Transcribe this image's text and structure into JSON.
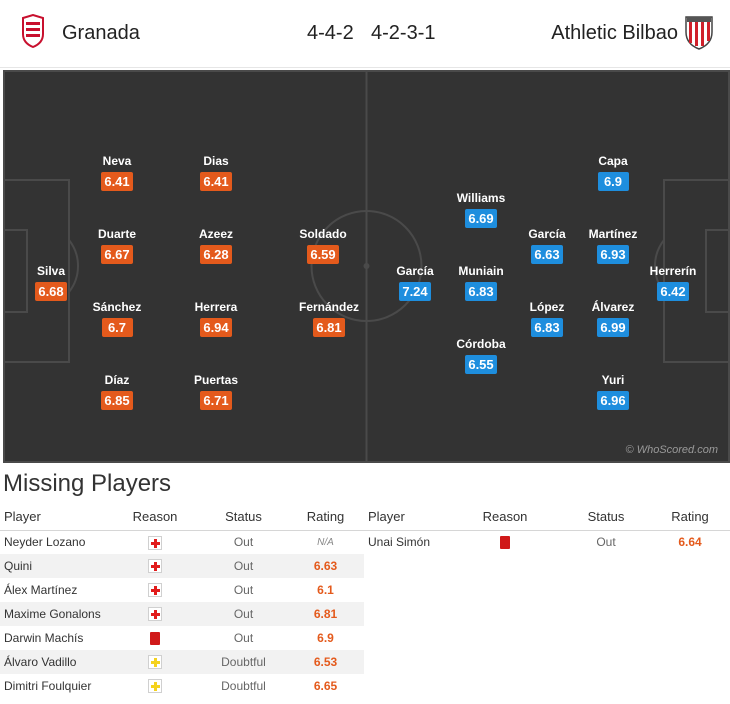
{
  "header": {
    "home_team": "Granada",
    "away_team": "Athletic Bilbao",
    "home_formation": "4-4-2",
    "away_formation": "4-2-3-1"
  },
  "pitch": {
    "watermark": "© WhoScored.com",
    "home_players": [
      {
        "name": "Silva",
        "rating": "6.68"
      },
      {
        "name": "Neva",
        "rating": "6.41"
      },
      {
        "name": "Duarte",
        "rating": "6.67"
      },
      {
        "name": "Sánchez",
        "rating": "6.7"
      },
      {
        "name": "Díaz",
        "rating": "6.85"
      },
      {
        "name": "Dias",
        "rating": "6.41"
      },
      {
        "name": "Azeez",
        "rating": "6.28"
      },
      {
        "name": "Herrera",
        "rating": "6.94"
      },
      {
        "name": "Puertas",
        "rating": "6.71"
      },
      {
        "name": "Soldado",
        "rating": "6.59"
      },
      {
        "name": "Fernández",
        "rating": "6.81"
      }
    ],
    "away_players": [
      {
        "name": "García",
        "rating": "7.24"
      },
      {
        "name": "Williams",
        "rating": "6.69"
      },
      {
        "name": "Muniain",
        "rating": "6.83"
      },
      {
        "name": "Córdoba",
        "rating": "6.55"
      },
      {
        "name": "García",
        "rating": "6.63"
      },
      {
        "name": "López",
        "rating": "6.83"
      },
      {
        "name": "Capa",
        "rating": "6.9"
      },
      {
        "name": "Martínez",
        "rating": "6.93"
      },
      {
        "name": "Álvarez",
        "rating": "6.99"
      },
      {
        "name": "Yuri",
        "rating": "6.96"
      },
      {
        "name": "Herrerín",
        "rating": "6.42"
      }
    ]
  },
  "missing": {
    "title": "Missing Players",
    "columns": {
      "player": "Player",
      "reason": "Reason",
      "status": "Status",
      "rating": "Rating"
    },
    "home": [
      {
        "player": "Neyder Lozano",
        "reason": "injury-icon",
        "status": "Out",
        "rating": "N/A"
      },
      {
        "player": "Quini",
        "reason": "injury-icon",
        "status": "Out",
        "rating": "6.63"
      },
      {
        "player": "Álex Martínez",
        "reason": "injury-icon",
        "status": "Out",
        "rating": "6.1"
      },
      {
        "player": "Maxime Gonalons",
        "reason": "injury-icon",
        "status": "Out",
        "rating": "6.81"
      },
      {
        "player": "Darwin Machís",
        "reason": "red-card-icon",
        "status": "Out",
        "rating": "6.9"
      },
      {
        "player": "Álvaro Vadillo",
        "reason": "doubtful-icon",
        "status": "Doubtful",
        "rating": "6.53"
      },
      {
        "player": "Dimitri Foulquier",
        "reason": "doubtful-icon",
        "status": "Doubtful",
        "rating": "6.65"
      }
    ],
    "away": [
      {
        "player": "Unai Simón",
        "reason": "red-card-icon",
        "status": "Out",
        "rating": "6.64"
      }
    ]
  },
  "colors": {
    "pitch": "#333333",
    "home_rating": "#e45a1c",
    "away_rating": "#1e8ede"
  }
}
